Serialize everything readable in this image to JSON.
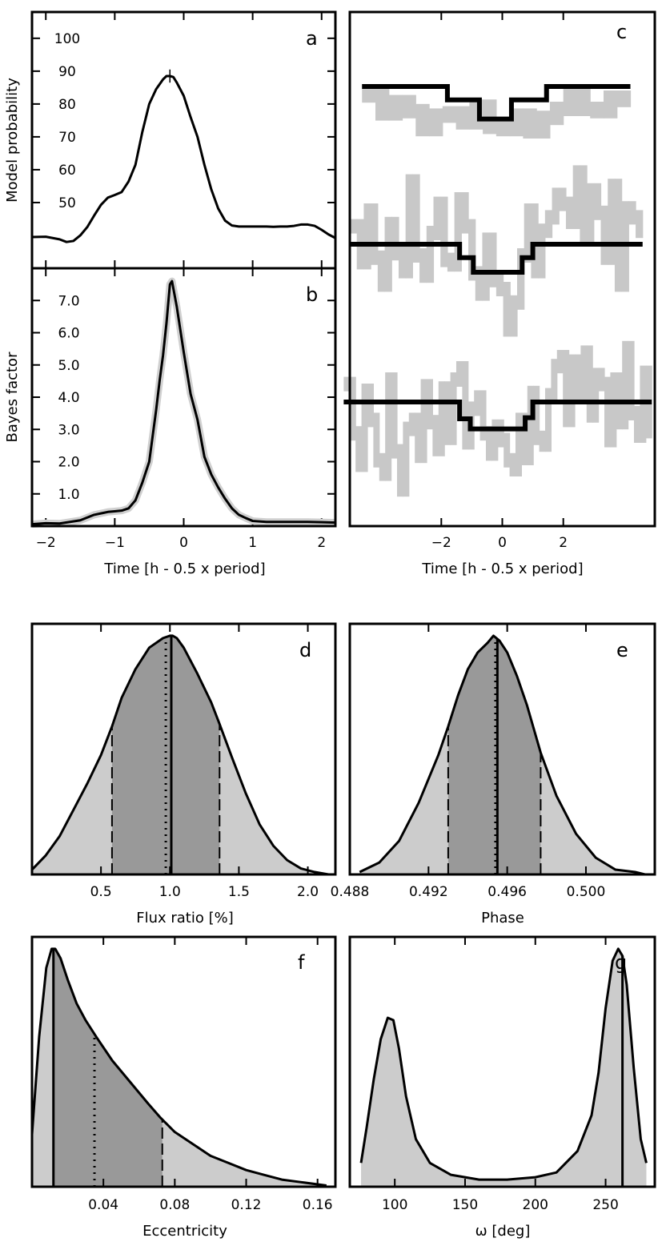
{
  "chart_data": [
    {
      "panel": "a",
      "type": "line",
      "letter": "a",
      "ylabel": "Model probability",
      "xlim": [
        -2.2,
        2.2
      ],
      "ylim": [
        30,
        108
      ],
      "yticks": [
        "100",
        "90",
        "80",
        "70",
        "60",
        "50"
      ],
      "xticks": [],
      "x": [
        -2.2,
        -2.0,
        -1.8,
        -1.7,
        -1.6,
        -1.5,
        -1.4,
        -1.3,
        -1.2,
        -1.1,
        -1.0,
        -0.9,
        -0.8,
        -0.7,
        -0.6,
        -0.5,
        -0.4,
        -0.3,
        -0.25,
        -0.2,
        -0.15,
        -0.1,
        0.0,
        0.1,
        0.2,
        0.3,
        0.4,
        0.5,
        0.6,
        0.7,
        0.8,
        0.9,
        1.0,
        1.1,
        1.2,
        1.3,
        1.4,
        1.5,
        1.6,
        1.7,
        1.8,
        1.9,
        2.0,
        2.1,
        2.2
      ],
      "y": [
        39.5,
        39.6,
        38.8,
        38.0,
        38.3,
        40.0,
        42.5,
        46.0,
        49.3,
        51.5,
        52.3,
        53.2,
        56.4,
        61.5,
        71.5,
        80.0,
        84.5,
        87.5,
        88.5,
        88.5,
        88.2,
        86.5,
        82.5,
        76.0,
        70.0,
        61.5,
        54.0,
        48.2,
        44.5,
        43.0,
        42.7,
        42.7,
        42.7,
        42.7,
        42.7,
        42.6,
        42.7,
        42.7,
        42.9,
        43.3,
        43.3,
        42.9,
        41.7,
        40.3,
        39.2
      ]
    },
    {
      "panel": "b",
      "type": "line",
      "letter": "b",
      "ylabel": "Bayes factor",
      "xlabel": "Time [h - 0.5 x period]",
      "xlim": [
        -2.2,
        2.2
      ],
      "ylim": [
        0,
        8.0
      ],
      "yticks": [
        "7.0",
        "6.0",
        "5.0",
        "4.0",
        "3.0",
        "2.0",
        "1.0"
      ],
      "xticks": [
        "−2",
        "−1",
        "0",
        "1",
        "2"
      ],
      "x": [
        -2.2,
        -2.0,
        -1.8,
        -1.5,
        -1.3,
        -1.1,
        -1.0,
        -0.9,
        -0.8,
        -0.7,
        -0.6,
        -0.5,
        -0.4,
        -0.35,
        -0.3,
        -0.25,
        -0.2,
        -0.17,
        -0.1,
        0.0,
        0.1,
        0.2,
        0.3,
        0.4,
        0.5,
        0.6,
        0.7,
        0.8,
        0.9,
        1.0,
        1.2,
        1.5,
        1.8,
        2.0,
        2.2
      ],
      "y": [
        0.06,
        0.09,
        0.08,
        0.18,
        0.35,
        0.44,
        0.46,
        0.48,
        0.55,
        0.8,
        1.35,
        2.0,
        3.6,
        4.5,
        5.3,
        6.3,
        7.5,
        7.6,
        6.8,
        5.4,
        4.1,
        3.3,
        2.15,
        1.6,
        1.2,
        0.85,
        0.55,
        0.35,
        0.25,
        0.16,
        0.13,
        0.13,
        0.13,
        0.12,
        0.11
      ]
    },
    {
      "panel": "c",
      "type": "line",
      "letter": "c",
      "xlabel": "Time [h - 0.5 x period]",
      "xlim": [
        -5,
        5
      ],
      "xticks": [
        "−2",
        "0",
        "2"
      ],
      "series": [
        {
          "model": [
            [
              -4.6,
              0
            ],
            [
              -1.8,
              0
            ],
            [
              -1.8,
              -0.6
            ],
            [
              -0.75,
              -0.6
            ],
            [
              -0.75,
              -1.45
            ],
            [
              0.3,
              -1.45
            ],
            [
              0.3,
              -0.6
            ],
            [
              1.45,
              -0.6
            ],
            [
              1.45,
              0
            ],
            [
              4.2,
              0
            ]
          ],
          "data": [
            -0.4,
            -1.2,
            -0.7,
            -1.1,
            -1.9,
            -1.3,
            -1.2,
            -1.6,
            -0.9,
            -1.8,
            -1.9,
            -1.3,
            -2.0,
            -1.4,
            -1.0,
            -0.4,
            -1.0,
            -1.1,
            -0.5,
            -0.6
          ]
        },
        {
          "model": [
            [
              -5.0,
              0
            ],
            [
              -1.4,
              0
            ],
            [
              -1.4,
              -0.6
            ],
            [
              -0.95,
              -0.6
            ],
            [
              -0.95,
              -1.25
            ],
            [
              0.65,
              -1.25
            ],
            [
              0.65,
              -0.6
            ],
            [
              1.0,
              -0.6
            ],
            [
              1.0,
              0
            ],
            [
              4.6,
              0
            ]
          ],
          "data": [
            0.8,
            -0.8,
            1.5,
            -0.6,
            -1.8,
            0.9,
            -0.4,
            -1.2,
            2.8,
            -0.5,
            -1.4,
            0.5,
            1.8,
            -0.7,
            -0.9,
            2.0,
            0.8,
            -1.3,
            -2.2,
            0.2,
            -1.6,
            -2.0,
            -3.8,
            -2.6,
            -0.5,
            1.5,
            -1.2,
            0.6,
            1.2,
            2.2,
            1.8,
            1.0,
            3.2,
            0.4,
            2.4,
            1.4,
            -0.6,
            2.6,
            -1.8,
            1.6,
            1.2,
            0.6
          ]
        },
        {
          "model": [
            [
              -5.2,
              0
            ],
            [
              -1.4,
              0
            ],
            [
              -1.4,
              -0.75
            ],
            [
              -1.05,
              -0.75
            ],
            [
              -1.05,
              -1.2
            ],
            [
              0.75,
              -1.2
            ],
            [
              0.75,
              -0.7
            ],
            [
              1.0,
              -0.7
            ],
            [
              1.0,
              0
            ],
            [
              4.9,
              0
            ]
          ],
          "data": [
            0.8,
            -1.4,
            -2.8,
            0.5,
            -0.8,
            -2.6,
            -3.2,
            1.0,
            -2.2,
            -3.9,
            -1.2,
            -0.8,
            -2.4,
            0.7,
            -0.9,
            -2.1,
            0.6,
            -1.6,
            1.0,
            1.5,
            -1.8,
            -0.3,
            0.2,
            -1.4,
            -2.3,
            -1.1,
            -1.7,
            -2.6,
            -3.0,
            -0.8,
            -2.5,
            0.4,
            -1.6,
            -1.9,
            0.3,
            1.6,
            2.0,
            -0.8,
            1.8,
            0.4,
            2.2,
            -0.6,
            1.2,
            0.8,
            -1.7,
            1.0,
            -0.9,
            2.4,
            -0.5,
            -1.5,
            1.3,
            -1.3
          ]
        }
      ]
    },
    {
      "panel": "d",
      "type": "area",
      "letter": "d",
      "xlabel": "Flux ratio [%]",
      "xlim": [
        0,
        2.2
      ],
      "ylim": [
        0,
        1.05
      ],
      "xticks": [
        "0.5",
        "1.0",
        "1.5",
        "2.0"
      ],
      "x": [
        0.0,
        0.1,
        0.2,
        0.3,
        0.4,
        0.5,
        0.58,
        0.65,
        0.75,
        0.85,
        0.95,
        1.0,
        1.02,
        1.05,
        1.1,
        1.2,
        1.3,
        1.36,
        1.45,
        1.55,
        1.65,
        1.75,
        1.85,
        1.95,
        2.05,
        2.15
      ],
      "y": [
        0.02,
        0.08,
        0.16,
        0.27,
        0.38,
        0.5,
        0.62,
        0.74,
        0.86,
        0.95,
        0.99,
        1.0,
        1.0,
        0.99,
        0.95,
        0.84,
        0.72,
        0.63,
        0.49,
        0.34,
        0.21,
        0.12,
        0.06,
        0.025,
        0.01,
        0.0
      ],
      "credible_interval": [
        0.58,
        1.36
      ],
      "median": 0.97,
      "mode": 1.01
    },
    {
      "panel": "e",
      "type": "area",
      "letter": "e",
      "xlabel": "Phase",
      "xlim": [
        0.488,
        0.5035
      ],
      "ylim": [
        0,
        1.05
      ],
      "xticks": [
        "0.488",
        "0.492",
        "0.496",
        "0.500"
      ],
      "x": [
        0.4885,
        0.4895,
        0.4905,
        0.4915,
        0.4925,
        0.493,
        0.4935,
        0.494,
        0.4945,
        0.495,
        0.4953,
        0.4956,
        0.496,
        0.4965,
        0.497,
        0.4977,
        0.4985,
        0.4995,
        0.5005,
        0.5015,
        0.5025,
        0.503
      ],
      "y": [
        0.01,
        0.05,
        0.14,
        0.3,
        0.5,
        0.62,
        0.75,
        0.86,
        0.93,
        0.97,
        1.0,
        0.98,
        0.93,
        0.83,
        0.71,
        0.51,
        0.33,
        0.17,
        0.07,
        0.02,
        0.01,
        0.0
      ],
      "credible_interval": [
        0.493,
        0.4977
      ],
      "median": 0.4954,
      "mode": 0.4955
    },
    {
      "panel": "f",
      "type": "area",
      "letter": "f",
      "xlabel": "Eccentricity",
      "xlim": [
        0.0,
        0.17
      ],
      "ylim": [
        0,
        1.05
      ],
      "xticks": [
        "0.04",
        "0.08",
        "0.12",
        "0.16"
      ],
      "x": [
        0.0,
        0.004,
        0.008,
        0.011,
        0.013,
        0.016,
        0.02,
        0.025,
        0.03,
        0.036,
        0.045,
        0.055,
        0.065,
        0.072,
        0.08,
        0.09,
        0.1,
        0.11,
        0.12,
        0.13,
        0.14,
        0.15,
        0.16,
        0.165
      ],
      "y": [
        0.22,
        0.63,
        0.92,
        1.0,
        1.0,
        0.96,
        0.87,
        0.77,
        0.7,
        0.63,
        0.53,
        0.44,
        0.35,
        0.29,
        0.23,
        0.18,
        0.13,
        0.1,
        0.07,
        0.05,
        0.03,
        0.02,
        0.01,
        0.005
      ],
      "credible_interval": [
        0.012,
        0.073
      ],
      "median": 0.035,
      "mode": 0.012
    },
    {
      "panel": "g",
      "type": "area",
      "letter": "g",
      "xlabel": "ω [deg]",
      "xlim": [
        68,
        285
      ],
      "ylim": [
        0,
        1.05
      ],
      "xticks": [
        "100",
        "150",
        "200",
        "250"
      ],
      "x": [
        76,
        80,
        85,
        90,
        95,
        99,
        103,
        108,
        115,
        125,
        140,
        160,
        180,
        200,
        215,
        230,
        240,
        245,
        250,
        255,
        259,
        262,
        265,
        270,
        275,
        279
      ],
      "y": [
        0.1,
        0.25,
        0.45,
        0.62,
        0.71,
        0.7,
        0.58,
        0.38,
        0.2,
        0.1,
        0.05,
        0.03,
        0.03,
        0.04,
        0.06,
        0.15,
        0.3,
        0.48,
        0.75,
        0.95,
        1.0,
        0.97,
        0.85,
        0.5,
        0.2,
        0.1
      ],
      "mode": 262
    }
  ]
}
